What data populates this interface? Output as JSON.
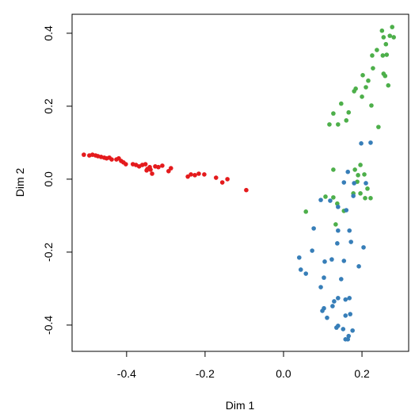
{
  "chart_data": {
    "type": "scatter",
    "xlabel": "Dim 1",
    "ylabel": "Dim 2",
    "xlim": [
      -0.539,
      0.319
    ],
    "ylim": [
      -0.472,
      0.452
    ],
    "xticks": [
      -0.4,
      -0.2,
      {
        "value": 0,
        "label": "0.0"
      },
      0.2
    ],
    "yticks": [
      -0.4,
      -0.2,
      {
        "value": 0,
        "label": "0.0"
      },
      0.2,
      0.4
    ],
    "grid": false,
    "series": [
      {
        "color": "#e41a1c",
        "x": [
          -0.509,
          -0.495,
          -0.487,
          -0.479,
          -0.473,
          -0.465,
          -0.457,
          -0.451,
          -0.444,
          -0.438,
          -0.426,
          -0.42,
          -0.414,
          -0.408,
          -0.402,
          -0.384,
          -0.376,
          -0.368,
          -0.36,
          -0.352,
          -0.347,
          -0.341,
          -0.335,
          -0.327,
          -0.319,
          -0.309,
          -0.293,
          -0.287,
          -0.244,
          -0.236,
          -0.226,
          -0.216,
          -0.202,
          -0.172,
          -0.156,
          -0.143,
          -0.095,
          -0.349,
          -0.339
        ],
        "y": [
          0.067,
          0.065,
          0.067,
          0.065,
          0.063,
          0.061,
          0.059,
          0.057,
          0.059,
          0.054,
          0.054,
          0.057,
          0.05,
          0.046,
          0.041,
          0.041,
          0.039,
          0.035,
          0.039,
          0.041,
          0.028,
          0.033,
          0.015,
          0.035,
          0.033,
          0.037,
          0.022,
          0.03,
          0.007,
          0.013,
          0.011,
          0.015,
          0.013,
          0.004,
          -0.009,
          0.0,
          -0.03,
          0.024,
          0.026
        ]
      },
      {
        "color": "#4daf4a",
        "x": [
          0.277,
          0.251,
          0.271,
          0.255,
          0.281,
          0.238,
          0.261,
          0.226,
          0.253,
          0.263,
          0.228,
          0.255,
          0.259,
          0.202,
          0.216,
          0.184,
          0.18,
          0.267,
          0.21,
          0.2,
          0.224,
          0.147,
          0.127,
          0.166,
          0.117,
          0.139,
          0.16,
          0.242,
          0.196,
          0.182,
          0.127,
          0.206,
          0.19,
          0.214,
          0.222,
          0.178,
          0.196,
          0.208,
          0.107,
          0.127,
          0.137,
          0.154,
          0.057,
          0.133,
          0.188
        ],
        "y": [
          0.417,
          0.407,
          0.393,
          0.389,
          0.389,
          0.354,
          0.37,
          0.339,
          0.339,
          0.341,
          0.304,
          0.289,
          0.283,
          0.285,
          0.27,
          0.248,
          0.241,
          0.257,
          0.252,
          0.226,
          0.202,
          0.207,
          0.18,
          0.183,
          0.15,
          0.15,
          0.161,
          0.143,
          0.039,
          0.026,
          0.026,
          0.013,
          0.011,
          -0.026,
          -0.052,
          -0.039,
          -0.039,
          -0.052,
          -0.048,
          -0.05,
          -0.067,
          -0.087,
          -0.089,
          -0.124,
          -0.007
        ]
      },
      {
        "color": "#377eb8",
        "x": [
          0.198,
          0.222,
          0.164,
          0.154,
          0.18,
          0.21,
          0.178,
          0.095,
          0.119,
          0.139,
          0.16,
          0.077,
          0.139,
          0.168,
          0.172,
          0.137,
          0.204,
          0.04,
          0.073,
          0.123,
          0.154,
          0.105,
          0.044,
          0.057,
          0.192,
          0.147,
          0.103,
          0.095,
          0.139,
          0.129,
          0.158,
          0.168,
          0.103,
          0.099,
          0.111,
          0.17,
          0.125,
          0.158,
          0.139,
          0.152,
          0.135,
          0.176,
          0.166,
          0.164,
          0.158
        ],
        "y": [
          0.098,
          0.1,
          0.02,
          -0.009,
          -0.011,
          -0.011,
          -0.046,
          -0.057,
          -0.059,
          -0.076,
          -0.085,
          -0.135,
          -0.141,
          -0.141,
          -0.172,
          -0.176,
          -0.187,
          -0.215,
          -0.196,
          -0.22,
          -0.224,
          -0.226,
          -0.248,
          -0.259,
          -0.239,
          -0.274,
          -0.27,
          -0.296,
          -0.326,
          -0.335,
          -0.33,
          -0.326,
          -0.354,
          -0.361,
          -0.38,
          -0.37,
          -0.348,
          -0.374,
          -0.402,
          -0.411,
          -0.407,
          -0.415,
          -0.43,
          -0.439,
          -0.439
        ]
      }
    ]
  }
}
